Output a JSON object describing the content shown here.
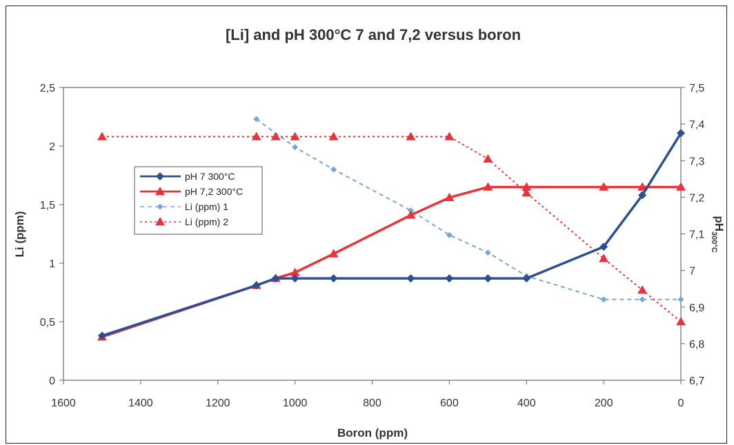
{
  "chart_data": {
    "type": "line",
    "title": "[Li] and  pH 300°C 7 and 7,2 versus boron",
    "xlabel": "Boron (ppm)",
    "ylabel": "Li (ppm)",
    "y2label_main": "pH",
    "y2label_sub": "300°C",
    "xlim": [
      1600,
      0
    ],
    "ylim": [
      0,
      2.5
    ],
    "y2lim": [
      6.7,
      7.5
    ],
    "x_ticks": [
      "1600",
      "1400",
      "1200",
      "1000",
      "800",
      "600",
      "400",
      "200",
      "0"
    ],
    "y_ticks": [
      "0",
      "0,5",
      "1",
      "1,5",
      "2",
      "2,5"
    ],
    "y2_ticks": [
      "6,7",
      "6,8",
      "6,9",
      "7",
      "7,1",
      "7,2",
      "7,3",
      "7,4",
      "7,5"
    ],
    "grid": false,
    "legend_placement": "left",
    "series": [
      {
        "name": "pH 7 300°C",
        "axis": "left",
        "color": "#2d4f8f",
        "style": "solid",
        "marker": "diamond",
        "x": [
          1500,
          1100,
          1050,
          1000,
          900,
          700,
          600,
          500,
          400,
          200,
          100,
          0
        ],
        "y": [
          0.38,
          0.81,
          0.87,
          0.87,
          0.87,
          0.87,
          0.87,
          0.87,
          0.87,
          1.14,
          1.58,
          2.11
        ]
      },
      {
        "name": "pH 7,2 300°C",
        "axis": "left",
        "color": "#e8323c",
        "style": "solid",
        "marker": "triangle",
        "x": [
          1500,
          1100,
          1050,
          1000,
          900,
          700,
          600,
          500,
          400,
          200,
          100,
          0
        ],
        "y": [
          0.37,
          0.81,
          0.87,
          0.92,
          1.08,
          1.41,
          1.56,
          1.65,
          1.65,
          1.65,
          1.65,
          1.65
        ]
      },
      {
        "name": "Li (ppm) 1",
        "axis": "left",
        "color": "#7aa6d6",
        "style": "dashed",
        "marker": "small-diamond",
        "x": [
          1100,
          1000,
          900,
          700,
          600,
          500,
          400,
          200,
          100,
          0
        ],
        "y": [
          2.23,
          1.99,
          1.8,
          1.45,
          1.24,
          1.09,
          0.89,
          0.69,
          0.69,
          0.69
        ]
      },
      {
        "name": "Li (ppm) 2",
        "axis": "left",
        "color": "#e8323c",
        "style": "dotted",
        "marker": "triangle",
        "x": [
          1500,
          1100,
          1050,
          1000,
          900,
          700,
          600,
          500,
          400,
          200,
          100,
          0
        ],
        "y": [
          2.08,
          2.08,
          2.08,
          2.08,
          2.08,
          2.08,
          2.08,
          1.89,
          1.6,
          1.04,
          0.77,
          0.5
        ]
      }
    ]
  }
}
